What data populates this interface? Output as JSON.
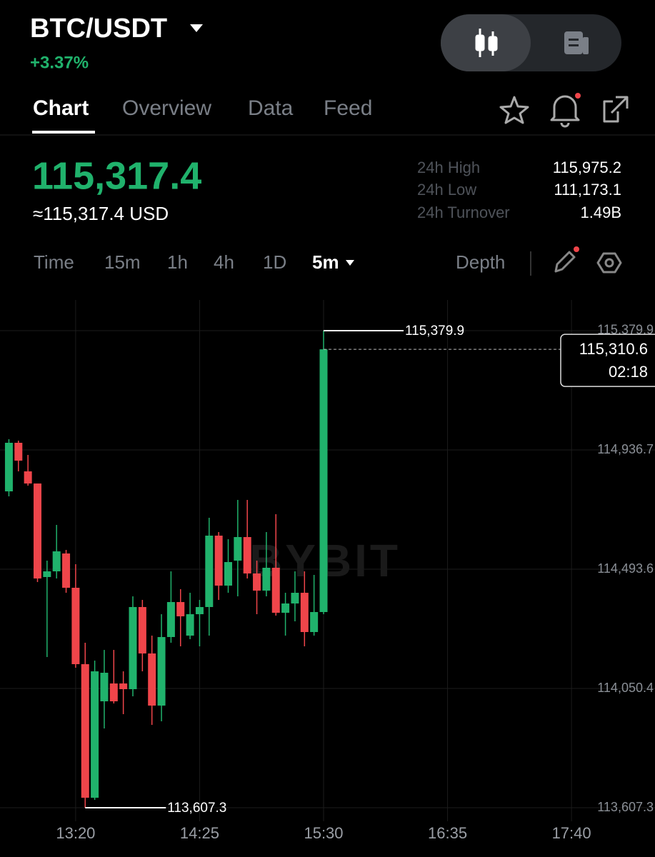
{
  "header": {
    "pair": "BTC/USDT",
    "change": "+3.37%"
  },
  "tabs": [
    "Chart",
    "Overview",
    "Data",
    "Feed"
  ],
  "price": {
    "last": "115,317.4",
    "usd": "≈115,317.4 USD"
  },
  "stats": [
    {
      "label": "24h High",
      "value": "115,975.2"
    },
    {
      "label": "24h Low",
      "value": "111,173.1"
    },
    {
      "label": "24h Turnover",
      "value": "1.49B"
    }
  ],
  "intervals": [
    "Time",
    "15m",
    "1h",
    "4h",
    "1D",
    "5m"
  ],
  "depth": "Depth",
  "chart_data": {
    "type": "candlestick",
    "watermark": "BYBIT",
    "categories": [
      null,
      null,
      null,
      null,
      null,
      null,
      null,
      "13:20",
      null,
      null,
      null,
      null,
      null,
      null,
      null,
      null,
      null,
      null,
      null,
      null,
      "14:25",
      null,
      null,
      null,
      null,
      null,
      null,
      null,
      null,
      null,
      null,
      null,
      null,
      "15:30",
      null,
      null,
      null,
      null,
      null,
      null,
      null,
      null,
      null,
      null,
      null,
      null,
      "16:35",
      null,
      null,
      null,
      null,
      null,
      null,
      null,
      null,
      null,
      null,
      null,
      null,
      "17:40",
      null
    ],
    "open": [
      114782.8,
      114963.3,
      114857.1,
      114812.0,
      114464.4,
      114485.6,
      114552.0,
      114424.6,
      114140.7,
      113644.4,
      114002.7,
      114069.0,
      114069.0,
      114047.8,
      114353.0,
      114180.5,
      113986.8,
      114241.5,
      114371.5,
      114246.8,
      114326.4,
      114353.0,
      114618.3,
      114432.6,
      114525.4,
      114613.0,
      114477.7,
      114414.0,
      114498.9,
      114331.7,
      114366.2,
      114406.0,
      114260.1,
      114334.4,
      null,
      null,
      null,
      null,
      null,
      null,
      null,
      null,
      null,
      null,
      null,
      null,
      null,
      null,
      null,
      null,
      null,
      null,
      null,
      null,
      null,
      null,
      null,
      null,
      null,
      null,
      null
    ],
    "high": [
      114976.5,
      114971.2,
      114918.2,
      114812.0,
      114525.4,
      114658.1,
      114565.2,
      114512.2,
      114220.3,
      114153.9,
      114193.7,
      114193.7,
      114114.1,
      114392.8,
      114379.5,
      114246.8,
      114326.4,
      114485.6,
      114419.3,
      114406.0,
      114379.5,
      114684.7,
      114631.6,
      114605.0,
      114751.0,
      114751.0,
      114525.4,
      114631.6,
      114697.9,
      114406.0,
      114485.6,
      114485.6,
      114472.4,
      115379.9,
      null,
      null,
      null,
      null,
      null,
      null,
      null,
      null,
      null,
      null,
      null,
      null,
      null,
      null,
      null,
      null,
      null,
      null,
      null,
      null,
      null,
      null,
      null,
      null,
      null,
      null,
      null
    ],
    "low": [
      114764.3,
      114857.1,
      114804.1,
      114445.8,
      114167.2,
      114459.1,
      114406.0,
      114127.4,
      113607.3,
      113636.5,
      113901.8,
      113994.7,
      113954.9,
      114021.3,
      114114.1,
      113915.1,
      113928.4,
      114220.3,
      114207.0,
      114233.5,
      114207.0,
      114246.8,
      114379.5,
      114406.0,
      114392.8,
      114459.1,
      114326.4,
      114392.8,
      114321.1,
      114246.8,
      114299.9,
      114207.0,
      114246.8,
      114326.4,
      null,
      null,
      null,
      null,
      null,
      null,
      null,
      null,
      null,
      null,
      null,
      null,
      null,
      null,
      null,
      null,
      null,
      null,
      null,
      null,
      null,
      null,
      null,
      null,
      null,
      null,
      null
    ],
    "close": [
      114963.3,
      114896.9,
      114812.0,
      114459.1,
      114485.6,
      114559.9,
      114424.6,
      114140.7,
      113644.4,
      114114.1,
      114108.8,
      114002.7,
      114047.8,
      114353.0,
      114180.5,
      113986.8,
      114241.5,
      114371.5,
      114318.5,
      114326.4,
      114353.0,
      114618.3,
      114432.6,
      114520.1,
      114613.0,
      114477.7,
      114414.0,
      114498.9,
      114331.7,
      114366.2,
      114406.0,
      114260.1,
      114334.4,
      115310.6,
      null,
      null,
      null,
      null,
      null,
      null,
      null,
      null,
      null,
      null,
      null,
      null,
      null,
      null,
      null,
      null,
      null,
      null,
      null,
      null,
      null,
      null,
      null,
      null,
      null,
      null,
      null
    ],
    "up_color": "#20b26c",
    "down_color": "#ef454a",
    "ylim": [
      113556.9,
      115494.0
    ],
    "yticks": [
      {
        "value": 113607.3,
        "label": "113,607.3"
      },
      {
        "value": 114050.4,
        "label": "114,050.4"
      },
      {
        "value": 114493.6,
        "label": "114,493.6"
      },
      {
        "value": 114936.7,
        "label": "114,936.7"
      },
      {
        "value": 115379.9,
        "label": "115,379.9"
      }
    ],
    "grid": true,
    "high_marker": {
      "value": 115379.9,
      "label": "115,379.9"
    },
    "low_marker": {
      "value": 113607.3,
      "label": "113,607.3"
    },
    "last_price": {
      "value": 115310.6,
      "label": "115,310.6"
    },
    "countdown": "02:18"
  }
}
